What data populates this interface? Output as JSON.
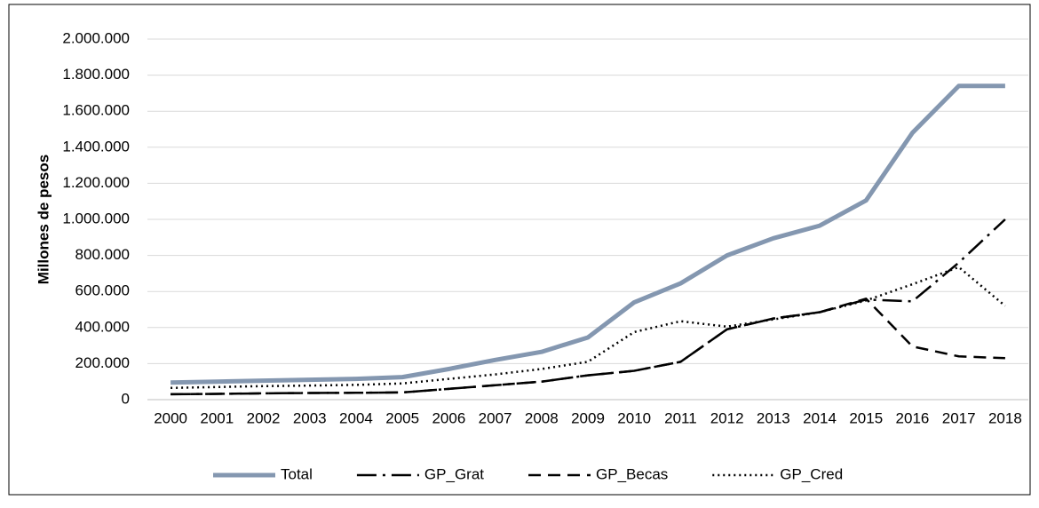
{
  "chart_data": {
    "type": "line",
    "y_label": "Millones de pesos",
    "categories": [
      "2000",
      "2001",
      "2002",
      "2003",
      "2004",
      "2005",
      "2006",
      "2007",
      "2008",
      "2009",
      "2010",
      "2011",
      "2012",
      "2013",
      "2014",
      "2015",
      "2016",
      "2017",
      "2018"
    ],
    "series": [
      {
        "name": "Total",
        "color": "#8497b0",
        "dash": "solid",
        "values": [
          95000,
          100000,
          105000,
          110000,
          115000,
          125000,
          170000,
          220000,
          265000,
          345000,
          540000,
          645000,
          800000,
          895000,
          965000,
          1105000,
          1480000,
          1740000,
          1740000
        ]
      },
      {
        "name": "GP_Grat",
        "color": "#000000",
        "dash": "dashdot",
        "values": [
          30000,
          32000,
          35000,
          37000,
          38000,
          40000,
          60000,
          80000,
          100000,
          135000,
          160000,
          210000,
          390000,
          450000,
          485000,
          555000,
          545000,
          760000,
          1000000
        ]
      },
      {
        "name": "GP_Becas",
        "color": "#000000",
        "dash": "dashed",
        "values": [
          30000,
          32000,
          35000,
          37000,
          38000,
          40000,
          60000,
          80000,
          100000,
          135000,
          160000,
          210000,
          390000,
          450000,
          485000,
          560000,
          295000,
          240000,
          230000
        ]
      },
      {
        "name": "GP_Cred",
        "color": "#000000",
        "dash": "dotted",
        "values": [
          65000,
          70000,
          75000,
          78000,
          82000,
          90000,
          115000,
          140000,
          170000,
          210000,
          375000,
          435000,
          405000,
          445000,
          485000,
          550000,
          640000,
          735000,
          520000
        ]
      }
    ],
    "ylim": [
      0,
      2000000
    ],
    "yticks": [
      0,
      {
        "value": 200000,
        "label": "200.000"
      },
      {
        "value": 400000,
        "label": "400.000"
      },
      {
        "value": 600000,
        "label": "600.000"
      },
      {
        "value": 800000,
        "label": "800.000"
      },
      {
        "value": 1000000,
        "label": "1.000.000"
      },
      {
        "value": 1200000,
        "label": "1.200.000"
      },
      {
        "value": 1400000,
        "label": "1.400.000"
      },
      {
        "value": 1600000,
        "label": "1.600.000"
      },
      {
        "value": 1800000,
        "label": "1.800.000"
      },
      {
        "value": 2000000,
        "label": "2.000.000"
      }
    ],
    "grid": true,
    "legend": "bottom"
  }
}
